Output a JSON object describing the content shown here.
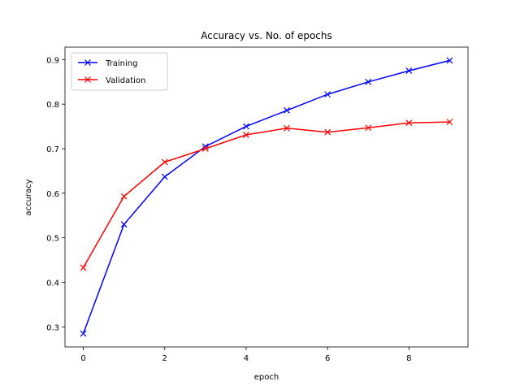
{
  "chart_data": {
    "type": "line",
    "title": "Accuracy vs. No. of epochs",
    "xlabel": "epoch",
    "ylabel": "accuracy",
    "x": [
      0,
      1,
      2,
      3,
      4,
      5,
      6,
      7,
      8,
      9
    ],
    "xlim": [
      -0.45,
      9.45
    ],
    "ylim": [
      0.255,
      0.928
    ],
    "xticks": [
      0,
      2,
      4,
      6,
      8
    ],
    "yticks": [
      0.3,
      0.4,
      0.5,
      0.6,
      0.7,
      0.8,
      0.9
    ],
    "grid": false,
    "legend_position": "top-left",
    "series": [
      {
        "name": "Training",
        "color": "#0000ff",
        "marker": "x",
        "values": [
          0.285,
          0.53,
          0.637,
          0.705,
          0.75,
          0.786,
          0.822,
          0.85,
          0.875,
          0.898
        ]
      },
      {
        "name": "Validation",
        "color": "#ff0000",
        "marker": "x",
        "values": [
          0.433,
          0.593,
          0.67,
          0.7,
          0.731,
          0.746,
          0.737,
          0.747,
          0.758,
          0.76
        ]
      }
    ]
  }
}
